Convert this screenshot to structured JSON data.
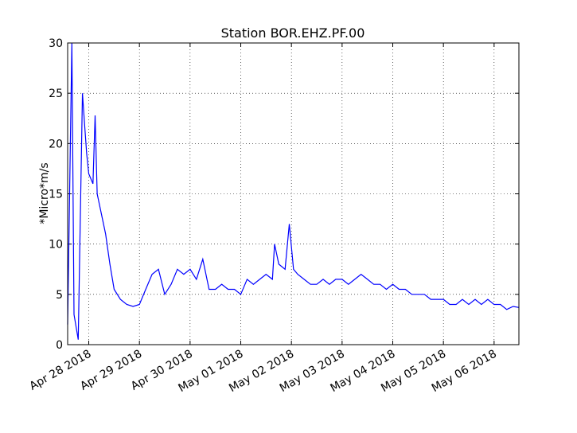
{
  "chart_data": {
    "type": "line",
    "title": "Station BOR.EHZ.PF.00",
    "ylabel": "*Micro*m/s",
    "color": "#0000ff",
    "grid": true,
    "x": [
      "2018-04-27T14:00",
      "2018-04-27T16:00",
      "2018-04-27T17:00",
      "2018-04-27T19:00",
      "2018-04-27T21:00",
      "2018-04-27T22:00",
      "2018-04-27T23:00",
      "2018-04-28T00:00",
      "2018-04-28T02:00",
      "2018-04-28T03:00",
      "2018-04-28T04:00",
      "2018-04-28T06:00",
      "2018-04-28T08:00",
      "2018-04-28T10:00",
      "2018-04-28T12:00",
      "2018-04-28T15:00",
      "2018-04-28T18:00",
      "2018-04-28T21:00",
      "2018-04-29T00:00",
      "2018-04-29T03:00",
      "2018-04-29T06:00",
      "2018-04-29T09:00",
      "2018-04-29T12:00",
      "2018-04-29T15:00",
      "2018-04-29T18:00",
      "2018-04-29T21:00",
      "2018-04-30T00:00",
      "2018-04-30T03:00",
      "2018-04-30T06:00",
      "2018-04-30T09:00",
      "2018-04-30T12:00",
      "2018-04-30T15:00",
      "2018-04-30T18:00",
      "2018-04-30T21:00",
      "2018-05-01T00:00",
      "2018-05-01T03:00",
      "2018-05-01T06:00",
      "2018-05-01T09:00",
      "2018-05-01T12:00",
      "2018-05-01T15:00",
      "2018-05-01T16:00",
      "2018-05-01T18:00",
      "2018-05-01T21:00",
      "2018-05-01T23:00",
      "2018-05-02T01:00",
      "2018-05-02T03:00",
      "2018-05-02T06:00",
      "2018-05-02T09:00",
      "2018-05-02T12:00",
      "2018-05-02T15:00",
      "2018-05-02T18:00",
      "2018-05-02T21:00",
      "2018-05-03T00:00",
      "2018-05-03T03:00",
      "2018-05-03T06:00",
      "2018-05-03T09:00",
      "2018-05-03T12:00",
      "2018-05-03T15:00",
      "2018-05-03T18:00",
      "2018-05-03T21:00",
      "2018-05-04T00:00",
      "2018-05-04T03:00",
      "2018-05-04T06:00",
      "2018-05-04T09:00",
      "2018-05-04T12:00",
      "2018-05-04T15:00",
      "2018-05-04T18:00",
      "2018-05-04T21:00",
      "2018-05-05T00:00",
      "2018-05-05T03:00",
      "2018-05-05T06:00",
      "2018-05-05T09:00",
      "2018-05-05T12:00",
      "2018-05-05T15:00",
      "2018-05-05T18:00",
      "2018-05-05T21:00",
      "2018-05-06T00:00",
      "2018-05-06T03:00",
      "2018-05-06T06:00",
      "2018-05-06T09:00",
      "2018-05-06T11:45"
    ],
    "values": [
      2,
      30,
      3,
      0.5,
      25,
      22,
      19,
      17,
      16,
      22.8,
      15,
      13,
      11,
      8,
      5.5,
      4.5,
      4,
      3.8,
      4,
      5.5,
      7,
      7.5,
      5,
      6,
      7.5,
      7,
      7.5,
      6.5,
      8.5,
      5.5,
      5.5,
      6,
      5.5,
      5.5,
      5,
      6.5,
      6,
      6.5,
      7,
      6.5,
      10,
      8,
      7.5,
      12,
      7.5,
      7,
      6.5,
      6,
      6,
      6.5,
      6,
      6.5,
      6.5,
      6,
      6.5,
      7,
      6.5,
      6,
      6,
      5.5,
      6,
      5.5,
      5.5,
      5,
      5,
      5,
      4.5,
      4.5,
      4.5,
      4,
      4,
      4.5,
      4,
      4.5,
      4,
      4.5,
      4,
      4,
      3.5,
      3.8,
      3.7
    ],
    "xlim": [
      "2018-04-27T14:00",
      "2018-05-06T11:45"
    ],
    "xticks": [
      {
        "value": "2018-04-28T00:00",
        "label": "Apr 28 2018"
      },
      {
        "value": "2018-04-29T00:00",
        "label": "Apr 29 2018"
      },
      {
        "value": "2018-04-30T00:00",
        "label": "Apr 30 2018"
      },
      {
        "value": "2018-05-01T00:00",
        "label": "May 01 2018"
      },
      {
        "value": "2018-05-02T00:00",
        "label": "May 02 2018"
      },
      {
        "value": "2018-05-03T00:00",
        "label": "May 03 2018"
      },
      {
        "value": "2018-05-04T00:00",
        "label": "May 04 2018"
      },
      {
        "value": "2018-05-05T00:00",
        "label": "May 05 2018"
      },
      {
        "value": "2018-05-06T00:00",
        "label": "May 06 2018"
      }
    ],
    "ylim": [
      0,
      30
    ],
    "yticks": [
      0,
      5,
      10,
      15,
      20,
      25,
      30
    ]
  }
}
